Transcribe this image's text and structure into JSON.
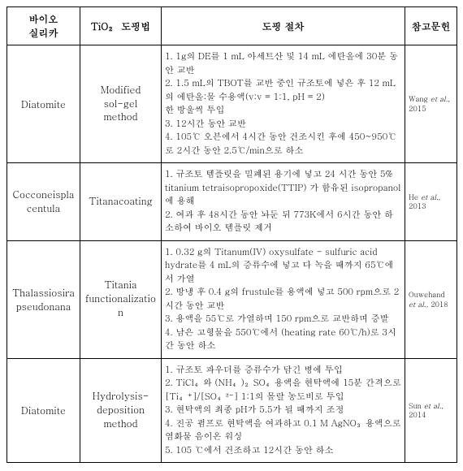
{
  "table": {
    "headers": {
      "col1": "바이오\n실리카",
      "col2": "TiO₂ 도핑법",
      "col3": "도핑 절차",
      "col4": "참고문헌"
    },
    "rows": [
      {
        "biosilica": "Diatomite",
        "method": "Modified\nsol-gel\nmethod",
        "procedure": "1. 1g의 DE를 1 mL 아세트산 및 14 mL 에탄올에 30분 동안 교반\n2. 1.5 mL의 TBOT를 교반 중인 규조토에 넣은 후 12 mL의 에탄올:물 수용액(v:v = 1:1, pH = 2)\n한 방울씩 투입\n3. 12시간 동안 교반\n4. 105℃ 오븐에서 4시간 동안 건조시킨 후에 450~950℃로 2시간 동안 2.5℃/min으로 하소",
        "ref_pre": "Wang ",
        "ref_ital": "et al.",
        "ref_post": ", 2015"
      },
      {
        "biosilica": "Cocconeisplacentula",
        "method": "Titanacoating",
        "procedure": "1. 규조토 템플릿을 밀폐된 용기에 넣고 24 시간 동안 5% titanium tetraisopropoxide(TTIP) 가 함유된 isopropanol에 용해\n2. 여과 후 48시간 동안 놔둔 뒤 773K에서 6시간 동안 하소하여 바이오 템플릿 제거",
        "ref_pre": "He ",
        "ref_ital": "et al.",
        "ref_post": ", 2013"
      },
      {
        "biosilica": "Thalassiosira\npseudonana",
        "method": "Titania\nfunctionalization",
        "procedure": "1. 0.32 g의 Titanum(IV) oxysulfate - sulfuric acid hydrate를 4 mL의 증류수에 넣고 다 녹을 때까지 65℃에서 가열\n2. 방냉 후 0.4 g의 frustule를 용액에 넣고 500 rpm으로 2시간 동안 교반\n3. 용액을 55℃로 가열하며 150 rpm으로 교반하며 증발\n4. 남은 고형물을 550℃에서 (heating rate 60℃/h)로 3시간 동안 하소",
        "ref_pre": "Ouwehand ",
        "ref_ital": "et al.",
        "ref_post": ", 2018"
      },
      {
        "biosilica": "Diatomite",
        "method": "Hydrolysis-\ndeposition\nmethod",
        "procedure": "1. 규조토 파우더를 증류수가 담긴 병에 투입\n2. TiCl₄와 (NH₄)₂SO₄용액을 현탁액에 15분 간격으로 [Ti₄⁺]/[SO₄²⁻] 1:1의 몰랄 농도비로 투입\n3. 현탁액의 최종 pH가 5.5가 될 때까지 조정\n4. 진공 펌프로 현탁액을 여과하고 0.1 M AgNO₃용액으로 염화물 음이온 워싱\n5. 105 ℃에서 건조하고 12시간 동안 하소",
        "ref_pre": "Sun ",
        "ref_ital": "et al.",
        "ref_post": ", 2014"
      }
    ]
  }
}
